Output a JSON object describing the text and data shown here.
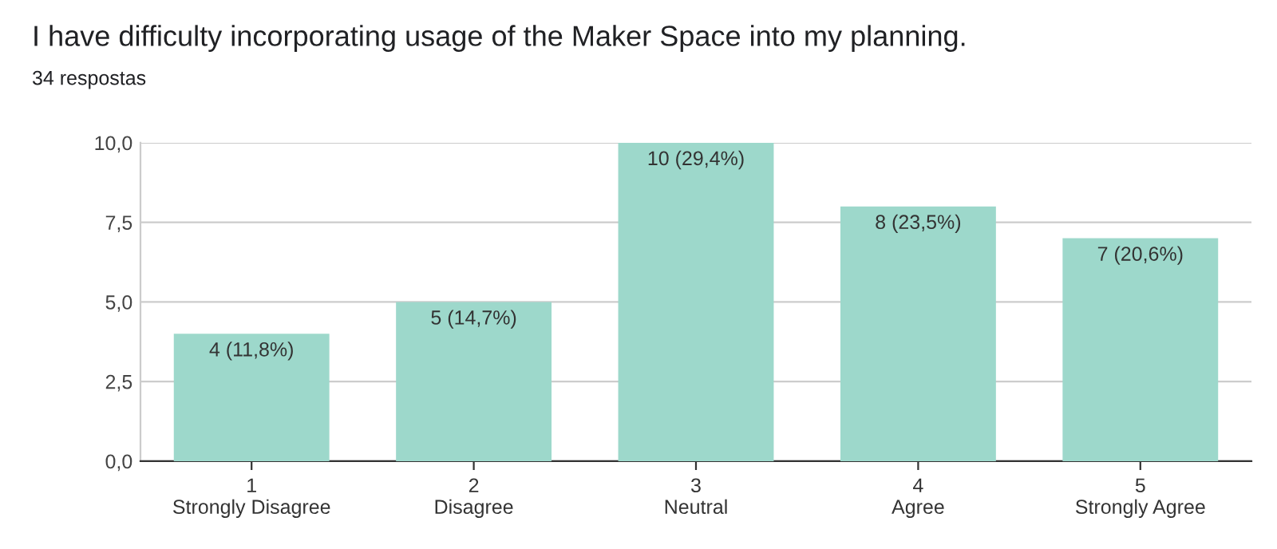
{
  "chart_data": {
    "type": "bar",
    "title": "I have difficulty incorporating usage of the Maker Space into my planning.",
    "subtitle": "34 respostas",
    "categories": [
      "1\nStrongly Disagree",
      "2\nDisagree",
      "3\nNeutral",
      "4\nAgree",
      "5\nStrongly Agree"
    ],
    "values": [
      4,
      5,
      10,
      8,
      7
    ],
    "value_labels": [
      "4 (11,8%)",
      "5 (14,7%)",
      "10 (29,4%)",
      "8 (23,5%)",
      "7 (20,6%)"
    ],
    "color": "#9dd8cb",
    "ylim": [
      0,
      10
    ],
    "yticks": [
      {
        "value": 0,
        "label": "0,0"
      },
      {
        "value": 2.5,
        "label": "2,5"
      },
      {
        "value": 5,
        "label": "5,0"
      },
      {
        "value": 7.5,
        "label": "7,5"
      },
      {
        "value": 10,
        "label": "10,0"
      }
    ],
    "grid": "y",
    "legend": false
  }
}
